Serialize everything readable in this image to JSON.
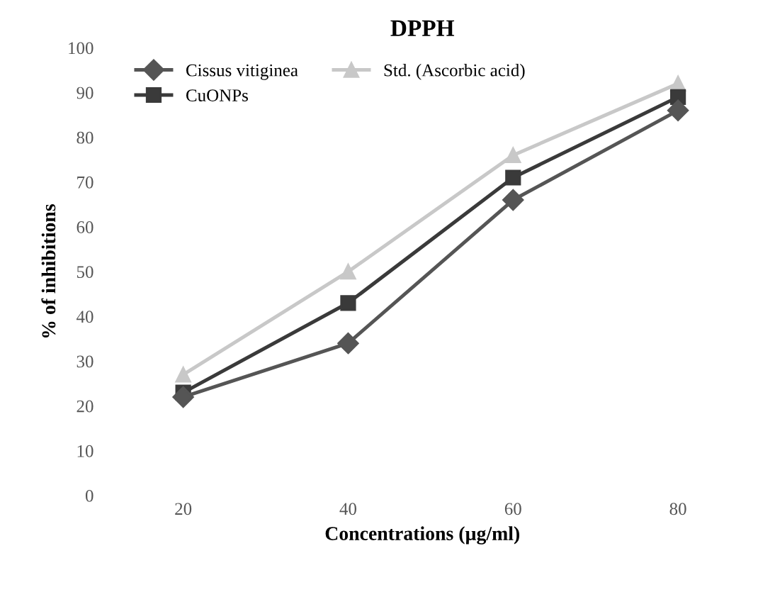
{
  "chart_data": {
    "type": "line",
    "title": "DPPH",
    "xlabel": "Concentrations (µg/ml)",
    "ylabel": "% of inhibitions",
    "categories": [
      "20",
      "40",
      "60",
      "80"
    ],
    "series": [
      {
        "name": "Cissus vitiginea",
        "color": "#555555",
        "marker": "diamond",
        "values": [
          22,
          34,
          66,
          86
        ]
      },
      {
        "name": "CuONPs",
        "color": "#3a3a3a",
        "marker": "square",
        "values": [
          23,
          43,
          71,
          89
        ]
      },
      {
        "name": "Std. (Ascorbic acid)",
        "color": "#c8c8c8",
        "marker": "triangle",
        "values": [
          27,
          50,
          76,
          92
        ]
      }
    ],
    "ylim": [
      0,
      100
    ],
    "yticks": [
      0,
      10,
      20,
      30,
      40,
      50,
      60,
      70,
      80,
      90,
      100
    ],
    "grid": false,
    "legend": "top",
    "line_style": "solid"
  }
}
